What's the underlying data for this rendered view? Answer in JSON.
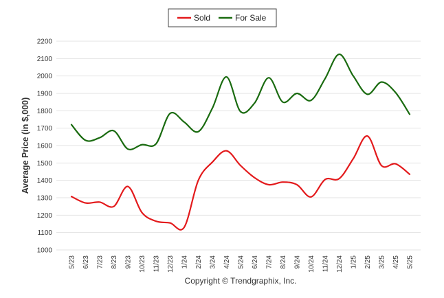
{
  "chart_data": {
    "type": "line",
    "title": "",
    "xlabel": "",
    "ylabel": "Average Price (in $,000)",
    "ylim": [
      1000,
      2200
    ],
    "yticks": [
      1000,
      1100,
      1200,
      1300,
      1400,
      1500,
      1600,
      1700,
      1800,
      1900,
      2000,
      2100,
      2200
    ],
    "grid": true,
    "legend_position": "top-center",
    "categories": [
      "5/23",
      "6/23",
      "7/23",
      "8/23",
      "9/23",
      "10/23",
      "11/23",
      "12/23",
      "1/24",
      "2/24",
      "3/24",
      "4/24",
      "5/24",
      "6/24",
      "7/24",
      "8/24",
      "9/24",
      "10/24",
      "11/24",
      "12/24",
      "1/25",
      "2/25",
      "3/25",
      "4/25",
      "5/25"
    ],
    "series": [
      {
        "name": "Sold",
        "color": "#e31a1c",
        "values": [
          1307,
          1270,
          1275,
          1250,
          1365,
          1215,
          1165,
          1155,
          1130,
          1400,
          1505,
          1570,
          1485,
          1415,
          1375,
          1390,
          1375,
          1305,
          1405,
          1410,
          1525,
          1655,
          1485,
          1495,
          1435
        ]
      },
      {
        "name": "For Sale",
        "color": "#1a6b10",
        "values": [
          1720,
          1630,
          1645,
          1685,
          1580,
          1605,
          1610,
          1785,
          1735,
          1680,
          1815,
          1995,
          1795,
          1845,
          1990,
          1850,
          1900,
          1860,
          1985,
          2125,
          2000,
          1895,
          1965,
          1905,
          1780
        ]
      }
    ],
    "footer": "Copyright © Trendgraphix, Inc."
  }
}
